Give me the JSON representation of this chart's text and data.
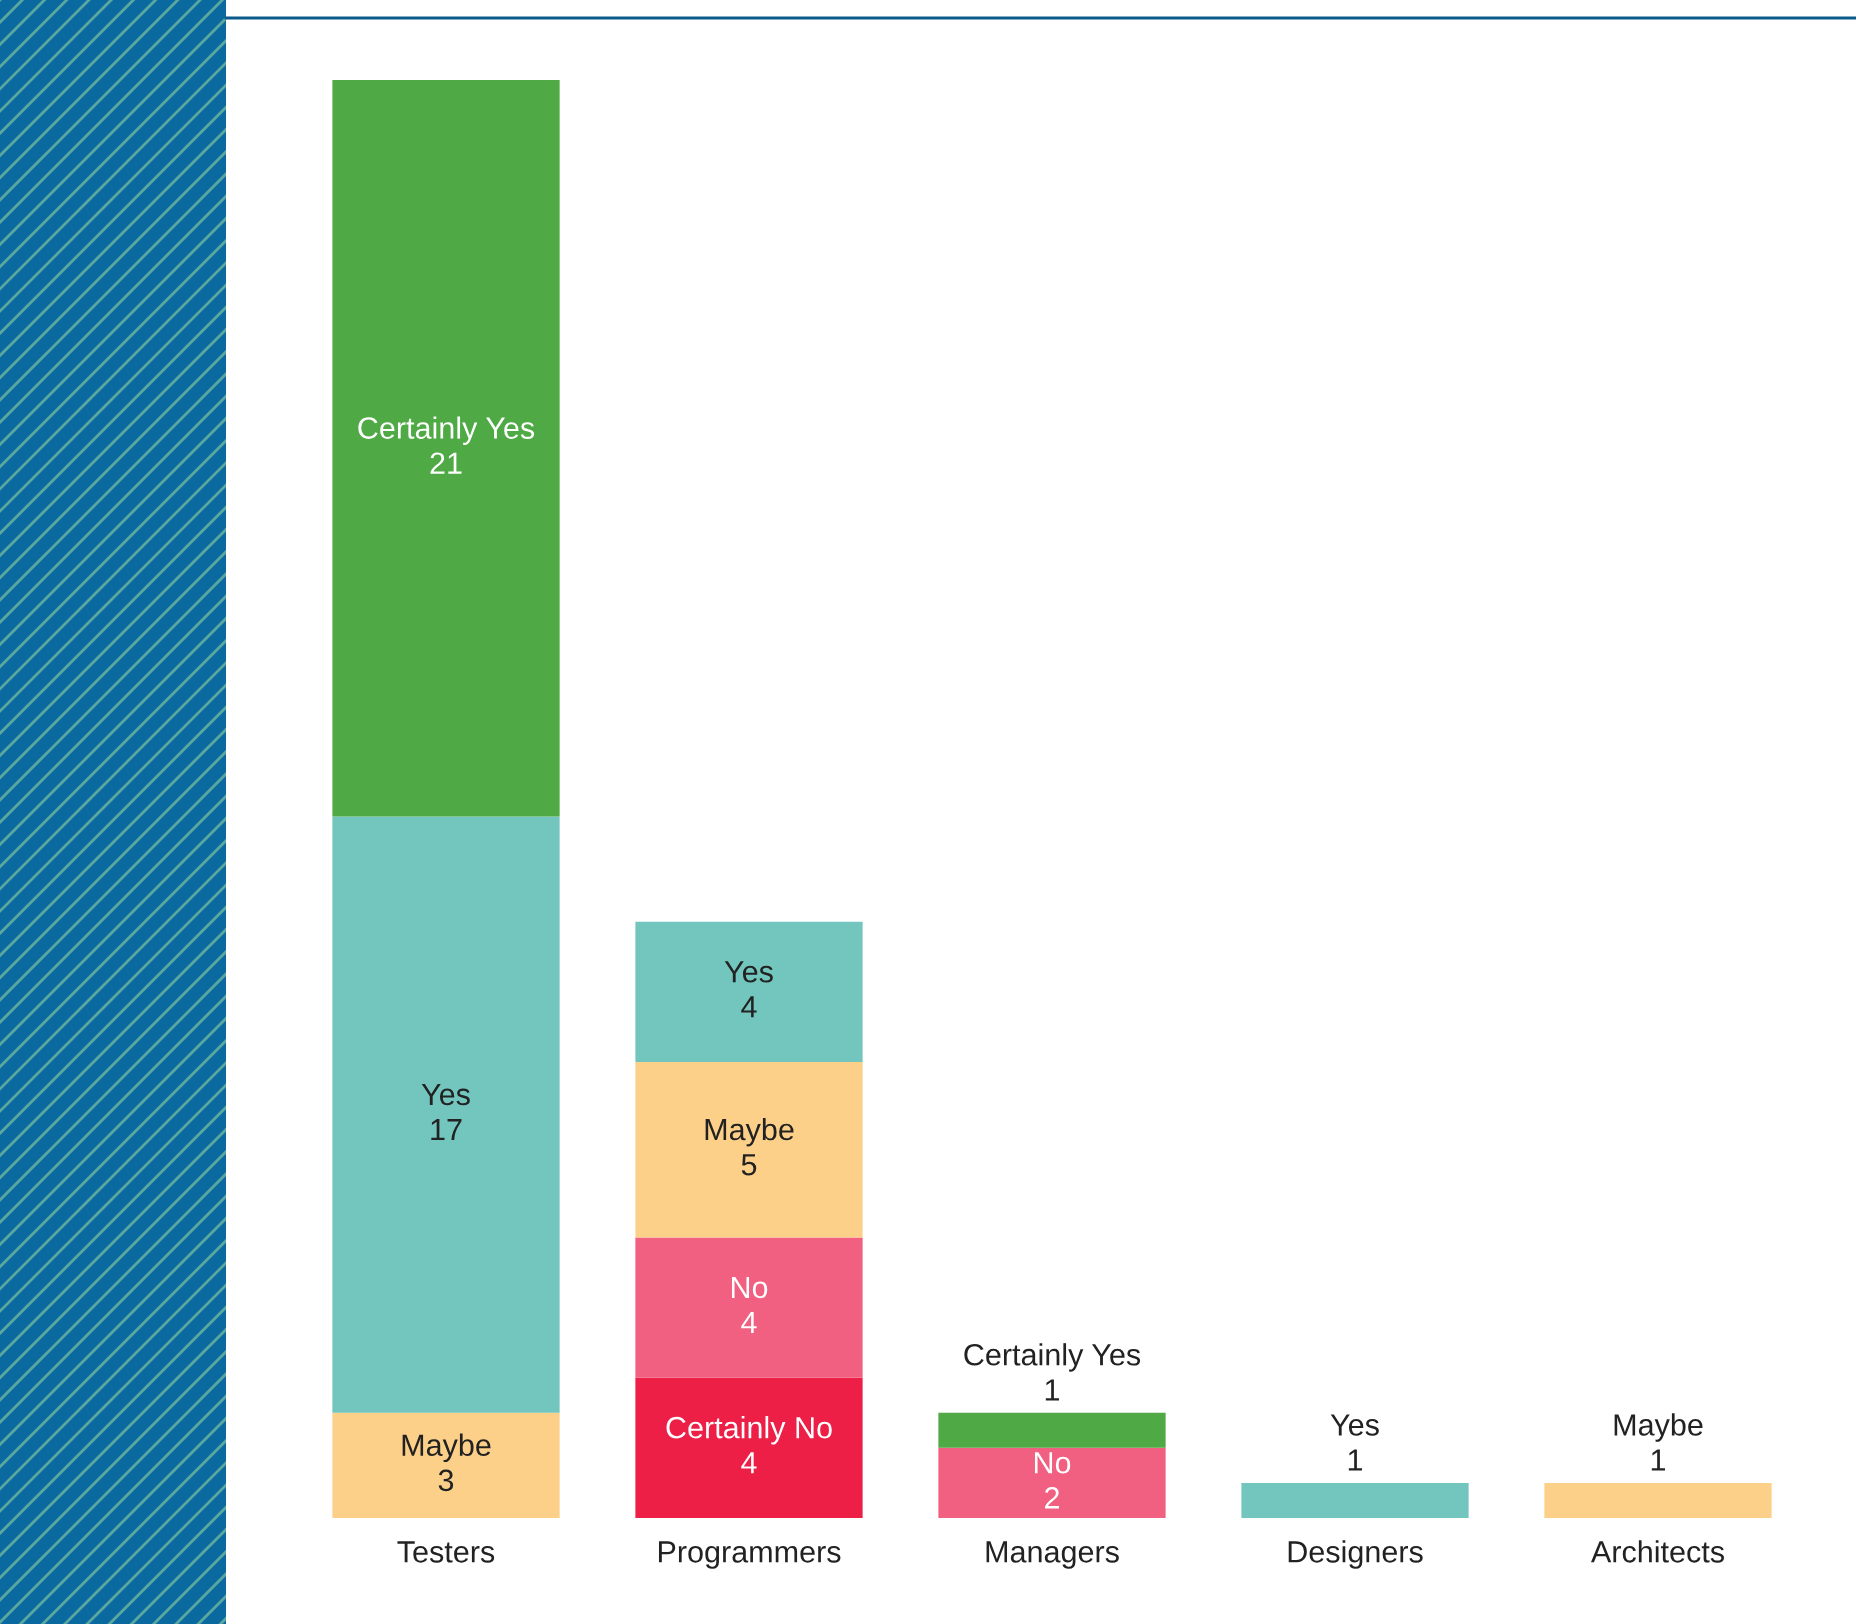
{
  "chart_data": {
    "type": "bar",
    "stacked": true,
    "data_labels": true,
    "legend": false,
    "grid": false,
    "categories": [
      "Testers",
      "Programmers",
      "Managers",
      "Designers",
      "Architects"
    ],
    "series": [
      {
        "name": "Certainly No",
        "color": "#ed1f47",
        "values": [
          null,
          4,
          null,
          null,
          null
        ]
      },
      {
        "name": "No",
        "color": "#f16080",
        "values": [
          null,
          4,
          2,
          null,
          null
        ]
      },
      {
        "name": "Maybe",
        "color": "#fdd08a",
        "values": [
          3,
          5,
          null,
          null,
          1
        ]
      },
      {
        "name": "Yes",
        "color": "#72c6be",
        "values": [
          17,
          4,
          null,
          1,
          null
        ]
      },
      {
        "name": "Certainly Yes",
        "color": "#4faa46",
        "values": [
          21,
          null,
          1,
          null,
          null
        ]
      }
    ]
  }
}
